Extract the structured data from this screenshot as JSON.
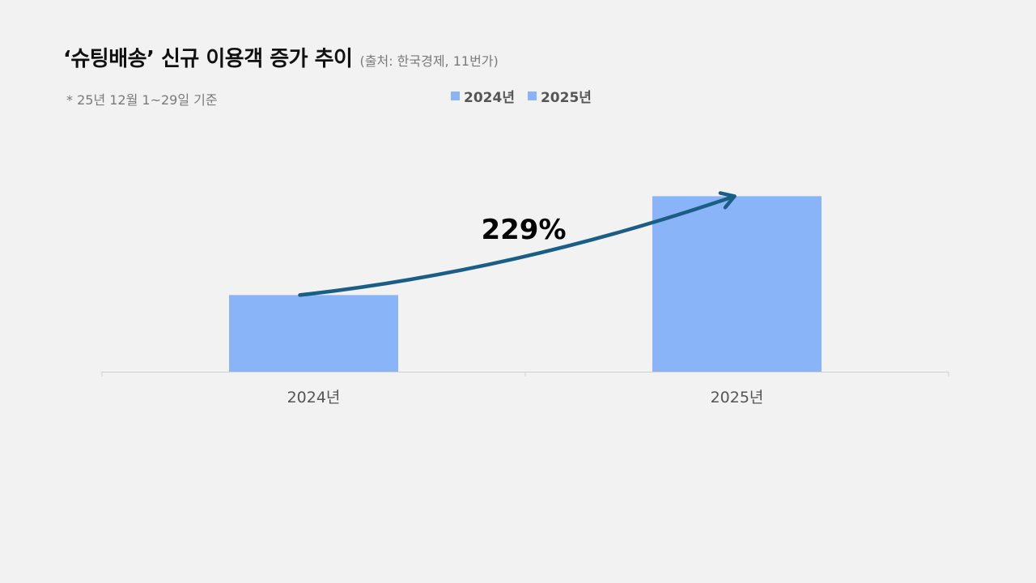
{
  "title": "‘슈팅배송’ 신규 이용객 증가 추이",
  "source": "(출처: 한국경제, 11번가)",
  "note": "* 25년 12월 1~29일 기준",
  "chart_data": {
    "type": "bar",
    "categories": [
      "2024년",
      "2025년"
    ],
    "series": [
      {
        "name": "2024년",
        "values": [
          100,
          null
        ],
        "color": "#8ab4f8"
      },
      {
        "name": "2025년",
        "values": [
          null,
          229
        ],
        "color": "#8ab4f8"
      }
    ],
    "ylim": [
      0,
      260
    ],
    "legend_position": "top-center",
    "grid": false,
    "annotation": {
      "text": "229%",
      "type": "curved-arrow",
      "from": "2024년",
      "to": "2025년",
      "color": "#1a5e86"
    }
  }
}
